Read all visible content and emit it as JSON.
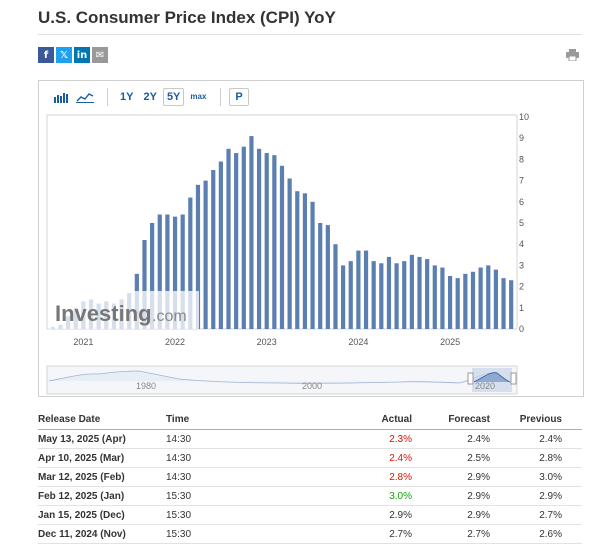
{
  "page": {
    "title": "U.S. Consumer Price Index (CPI) YoY"
  },
  "share": {
    "icons": [
      "facebook-icon",
      "x-icon",
      "linkedin-icon",
      "email-icon"
    ],
    "labels": [
      "f",
      "𝕏",
      "in",
      "✉"
    ],
    "colors": [
      "#3b5998",
      "#1da1f2",
      "#0077b5",
      "#999999"
    ]
  },
  "toolbar": {
    "range_buttons": [
      "1Y",
      "2Y",
      "5Y",
      "max"
    ],
    "active_range": "5Y",
    "period_button": "P"
  },
  "chart_data": {
    "type": "bar",
    "color": "#5b7fb0",
    "year_labels": [
      "2021",
      "2022",
      "2023",
      "2024",
      "2025"
    ],
    "y_ticks": [
      "0",
      "1",
      "2",
      "3",
      "4",
      "5",
      "6",
      "7",
      "8",
      "9",
      "10"
    ],
    "ylim": [
      0,
      10
    ],
    "watermark": "Investing.com",
    "values": [
      0.1,
      0.2,
      0.6,
      1.0,
      1.3,
      1.4,
      1.2,
      1.3,
      1.2,
      1.4,
      1.7,
      2.6,
      4.2,
      5.0,
      5.4,
      5.4,
      5.3,
      5.4,
      6.2,
      6.8,
      7.0,
      7.5,
      7.9,
      8.5,
      8.3,
      8.6,
      9.1,
      8.5,
      8.3,
      8.2,
      7.7,
      7.1,
      6.5,
      6.4,
      6.0,
      5.0,
      4.9,
      4.0,
      3.0,
      3.2,
      3.7,
      3.7,
      3.2,
      3.1,
      3.4,
      3.1,
      3.2,
      3.5,
      3.4,
      3.3,
      3.0,
      2.9,
      2.5,
      2.4,
      2.6,
      2.7,
      2.9,
      3.0,
      2.8,
      2.4,
      2.3
    ],
    "navigator": {
      "labels": [
        "1980",
        "2000",
        "2020"
      ]
    }
  },
  "table": {
    "headers": [
      "Release Date",
      "Time",
      "Actual",
      "Forecast",
      "Previous"
    ],
    "rows": [
      {
        "date": "May 13, 2025 (Apr)",
        "time": "14:30",
        "actual": "2.3%",
        "forecast": "2.4%",
        "previous": "2.4%",
        "actual_color": "#d91400"
      },
      {
        "date": "Apr 10, 2025 (Mar)",
        "time": "14:30",
        "actual": "2.4%",
        "forecast": "2.5%",
        "previous": "2.8%",
        "actual_color": "#d91400"
      },
      {
        "date": "Mar 12, 2025 (Feb)",
        "time": "14:30",
        "actual": "2.8%",
        "forecast": "2.9%",
        "previous": "3.0%",
        "actual_color": "#d91400"
      },
      {
        "date": "Feb 12, 2025 (Jan)",
        "time": "15:30",
        "actual": "3.0%",
        "forecast": "2.9%",
        "previous": "2.9%",
        "actual_color": "#0ea600"
      },
      {
        "date": "Jan 15, 2025 (Dec)",
        "time": "15:30",
        "actual": "2.9%",
        "forecast": "2.9%",
        "previous": "2.7%",
        "actual_color": "#333333"
      },
      {
        "date": "Dec 11, 2024 (Nov)",
        "time": "15:30",
        "actual": "2.7%",
        "forecast": "2.7%",
        "previous": "2.6%",
        "actual_color": "#333333"
      }
    ]
  }
}
